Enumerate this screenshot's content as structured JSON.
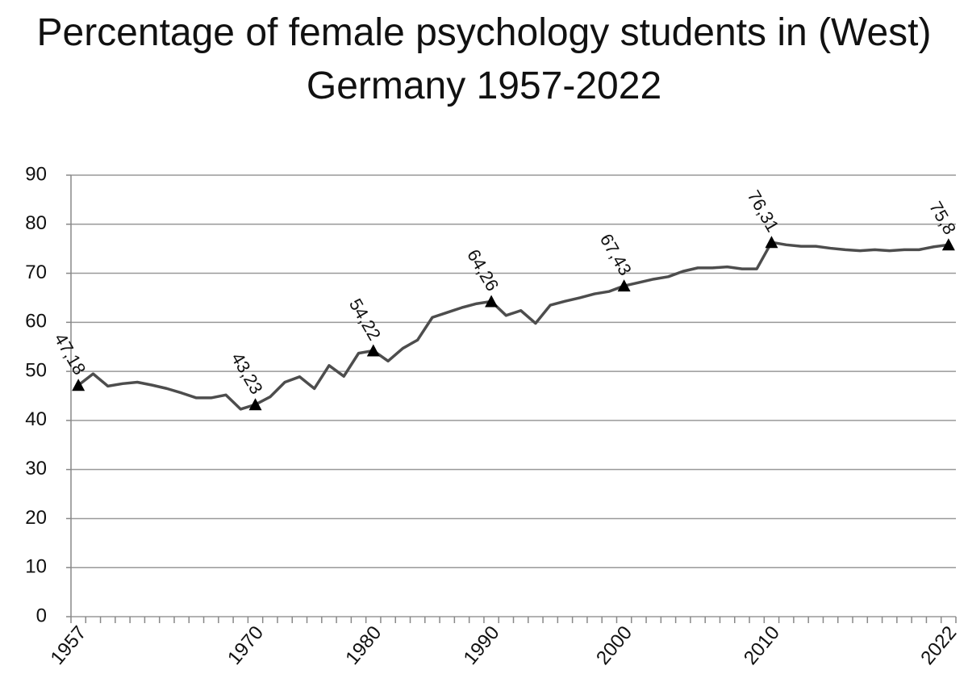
{
  "chart_data": {
    "type": "line",
    "title": "Percentage of female psychology students in (West) Germany 1957-2022",
    "categories": [
      "1957",
      null,
      null,
      null,
      null,
      null,
      null,
      null,
      null,
      null,
      null,
      null,
      "1970",
      null,
      null,
      null,
      null,
      null,
      null,
      null,
      "1980",
      null,
      null,
      null,
      null,
      null,
      null,
      null,
      "1990",
      null,
      null,
      null,
      null,
      null,
      null,
      null,
      null,
      "2000",
      null,
      null,
      null,
      null,
      null,
      null,
      null,
      null,
      null,
      "2010",
      null,
      null,
      null,
      null,
      null,
      null,
      null,
      null,
      null,
      null,
      null,
      "2022"
    ],
    "series": [
      {
        "color": "#4d4d4d",
        "values": [
          47.18,
          49.5,
          47.0,
          47.5,
          47.8,
          47.2,
          46.5,
          45.6,
          44.6,
          44.6,
          45.2,
          42.3,
          43.23,
          44.8,
          47.8,
          48.9,
          46.5,
          51.2,
          49.0,
          53.7,
          54.22,
          52.1,
          54.7,
          56.4,
          61.0,
          62.0,
          63.0,
          63.8,
          64.26,
          61.4,
          62.4,
          59.8,
          63.5,
          64.3,
          65.0,
          65.8,
          66.3,
          67.43,
          68.1,
          68.8,
          69.3,
          70.4,
          71.1,
          71.1,
          71.3,
          70.9,
          70.9,
          76.31,
          75.8,
          75.5,
          75.5,
          75.1,
          74.8,
          74.6,
          74.8,
          74.6,
          74.8,
          74.8,
          75.4,
          75.8
        ],
        "value_labels": [
          "47,18",
          null,
          null,
          null,
          null,
          null,
          null,
          null,
          null,
          null,
          null,
          null,
          "43,23",
          null,
          null,
          null,
          null,
          null,
          null,
          null,
          "54,22",
          null,
          null,
          null,
          null,
          null,
          null,
          null,
          "64,26",
          null,
          null,
          null,
          null,
          null,
          null,
          null,
          null,
          "67,43",
          null,
          null,
          null,
          null,
          null,
          null,
          null,
          null,
          null,
          "76,31",
          null,
          null,
          null,
          null,
          null,
          null,
          null,
          null,
          null,
          null,
          null,
          "75,8"
        ]
      }
    ],
    "ylim": [
      0,
      90
    ],
    "yticks": [
      0,
      10,
      20,
      30,
      40,
      50,
      60,
      70,
      80,
      90
    ],
    "grid": true
  }
}
